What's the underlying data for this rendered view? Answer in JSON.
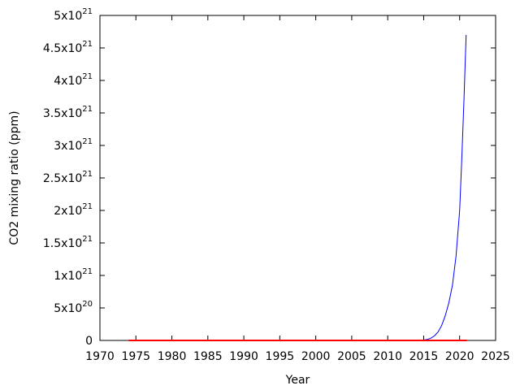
{
  "chart_data": {
    "type": "line",
    "title": "",
    "xlabel": "Year",
    "ylabel": "CO2 mixing ratio (ppm)",
    "xlim": [
      1970,
      2025
    ],
    "ylim": [
      0,
      5e+21
    ],
    "x_ticks": [
      1970,
      1975,
      1980,
      1985,
      1990,
      1995,
      2000,
      2005,
      2010,
      2015,
      2020,
      2025
    ],
    "y_ticks": [
      {
        "value": 0,
        "mantissa": "0",
        "exponent": ""
      },
      {
        "value": 5e+20,
        "mantissa": "5x10",
        "exponent": "20"
      },
      {
        "value": 1e+21,
        "mantissa": "1x10",
        "exponent": "21"
      },
      {
        "value": 1.5e+21,
        "mantissa": "1.5x10",
        "exponent": "21"
      },
      {
        "value": 2e+21,
        "mantissa": "2x10",
        "exponent": "21"
      },
      {
        "value": 2.5e+21,
        "mantissa": "2.5x10",
        "exponent": "21"
      },
      {
        "value": 3e+21,
        "mantissa": "3x10",
        "exponent": "21"
      },
      {
        "value": 3.5e+21,
        "mantissa": "3.5x10",
        "exponent": "21"
      },
      {
        "value": 4e+21,
        "mantissa": "4x10",
        "exponent": "21"
      },
      {
        "value": 4.5e+21,
        "mantissa": "4.5x10",
        "exponent": "21"
      },
      {
        "value": 5e+21,
        "mantissa": "5x10",
        "exponent": "21"
      }
    ],
    "grid": false,
    "legend": "none",
    "series": [
      {
        "color": "#0000ff",
        "x": [
          2014.0,
          2014.5,
          2015.0,
          2015.5,
          2016.0,
          2016.5,
          2017.0,
          2017.5,
          2018.0,
          2018.5,
          2019.0,
          2019.5,
          2020.0,
          2020.3,
          2020.6,
          2020.9
        ],
        "y": [
          0,
          2e+18,
          6e+18,
          1.5e+19,
          3.5e+19,
          7e+19,
          1.3e+20,
          2.3e+20,
          3.8e+20,
          5.8e+20,
          8.5e+20,
          1.3e+21,
          2e+21,
          2.8e+21,
          3.7e+21,
          4.7e+21
        ]
      },
      {
        "color": "#ff0000",
        "x": [
          1974,
          2021
        ],
        "y": [
          0,
          0
        ]
      }
    ]
  }
}
